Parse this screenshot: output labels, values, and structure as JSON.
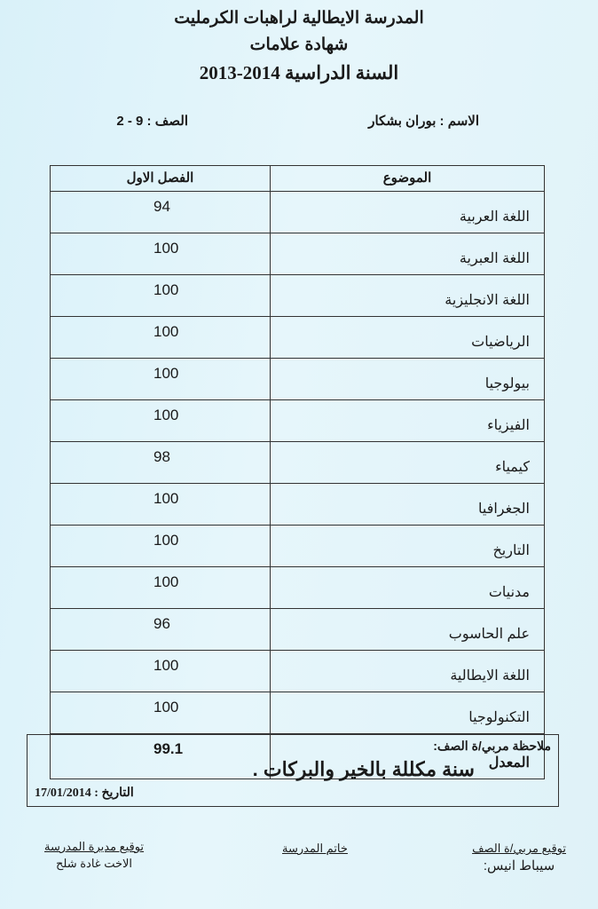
{
  "header": {
    "school": "المدرسة الايطالية لراهبات الكرمليت",
    "document_title": "شهادة علامات",
    "school_year": "السنة الدراسية 2014-2013"
  },
  "student": {
    "name": "الاسم : بوران بشكار",
    "class": "الصف  : 9 - 2"
  },
  "table": {
    "headers": [
      "الموضوع",
      "الفصل الاول"
    ],
    "rows": [
      {
        "subject": "اللغة العربية",
        "grade": "94"
      },
      {
        "subject": "اللغة العبرية",
        "grade": "100"
      },
      {
        "subject": "اللغة الانجليزية",
        "grade": "100"
      },
      {
        "subject": "الرياضيات",
        "grade": "100"
      },
      {
        "subject": "بيولوجيا",
        "grade": "100"
      },
      {
        "subject": "الفيزياء",
        "grade": "100"
      },
      {
        "subject": "كيمياء",
        "grade": "98"
      },
      {
        "subject": "الجغرافيا",
        "grade": "100"
      },
      {
        "subject": "التاريخ",
        "grade": "100"
      },
      {
        "subject": "مدنيات",
        "grade": "100"
      },
      {
        "subject": "علم الحاسوب",
        "grade": "96"
      },
      {
        "subject": "اللغة الايطالية",
        "grade": "100"
      },
      {
        "subject": "التكنولوجيا",
        "grade": "100"
      }
    ],
    "average": {
      "label": "المعدل",
      "value": "99.1"
    }
  },
  "note": {
    "label": "ملاحظة  مربي/ة الصف:",
    "text": "سنة مكللة بالخير والبركات .",
    "date": "التاريخ : 17/01/2014"
  },
  "signatures": {
    "teacher_label": "توقيع مربي/ة الصف",
    "teacher_name": "سيباط انيس:",
    "stamp_label": "خاتم المدرسة",
    "principal_label": "توقيع مديرة المدرسة",
    "principal_name": "الاخت غادة شلح"
  }
}
